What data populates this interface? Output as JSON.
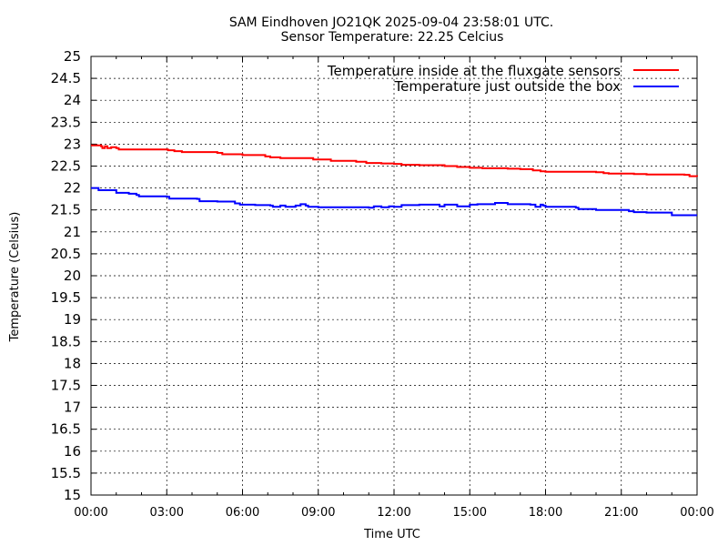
{
  "chart_data": {
    "type": "line",
    "title": "SAM Eindhoven JO21QK 2025-09-04 23:58:01 UTC.",
    "subtitle": "Sensor Temperature: 22.25 Celcius",
    "xlabel": "Time UTC",
    "ylabel": "Temperature (Celsius)",
    "xlim": [
      0,
      24
    ],
    "ylim": [
      15,
      25
    ],
    "xticks": [
      0,
      3,
      6,
      9,
      12,
      15,
      18,
      21,
      24
    ],
    "xtick_labels": [
      "00:00",
      "03:00",
      "06:00",
      "09:00",
      "12:00",
      "15:00",
      "18:00",
      "21:00",
      "00:00"
    ],
    "yticks": [
      15,
      15.5,
      16,
      16.5,
      17,
      17.5,
      18,
      18.5,
      19,
      19.5,
      20,
      20.5,
      21,
      21.5,
      22,
      22.5,
      23,
      23.5,
      24,
      24.5,
      25
    ],
    "ytick_labels": [
      "15",
      "15.5",
      "16",
      "16.5",
      "17",
      "17.5",
      "18",
      "18.5",
      "19",
      "19.5",
      "20",
      "20.5",
      "21",
      "21.5",
      "22",
      "22.5",
      "23",
      "23.5",
      "24",
      "24.5",
      "25"
    ],
    "grid": true,
    "legend_position": "top-right",
    "series": [
      {
        "name": "Temperature inside at the fluxgate sensors",
        "color": "#ff0000",
        "x": [
          0,
          0.4,
          0.45,
          0.55,
          0.65,
          0.8,
          1.0,
          1.1,
          2.0,
          3.0,
          3.05,
          3.3,
          3.6,
          4.5,
          5.0,
          5.2,
          6.0,
          6.5,
          6.9,
          7.1,
          7.5,
          8.5,
          8.8,
          9.5,
          10.5,
          10.9,
          11.5,
          12.0,
          12.3,
          13.0,
          14.0,
          14.5,
          15.0,
          15.5,
          16.5,
          17.0,
          17.5,
          17.8,
          18.0,
          19.0,
          20.0,
          20.3,
          20.5,
          21.0,
          21.5,
          22.0,
          23.0,
          23.5,
          23.7,
          24.0
        ],
        "y": [
          22.97,
          22.95,
          22.91,
          22.95,
          22.91,
          22.93,
          22.91,
          22.88,
          22.88,
          22.88,
          22.86,
          22.84,
          22.82,
          22.82,
          22.8,
          22.77,
          22.75,
          22.75,
          22.72,
          22.7,
          22.68,
          22.68,
          22.65,
          22.62,
          22.6,
          22.57,
          22.56,
          22.55,
          22.53,
          22.52,
          22.5,
          22.48,
          22.46,
          22.45,
          22.44,
          22.43,
          22.4,
          22.38,
          22.37,
          22.37,
          22.36,
          22.34,
          22.33,
          22.33,
          22.32,
          22.31,
          22.31,
          22.3,
          22.27,
          22.26
        ]
      },
      {
        "name": "Temperature just outside the box",
        "color": "#0000ff",
        "x": [
          0,
          0.3,
          0.9,
          1.0,
          1.5,
          1.8,
          1.9,
          3.0,
          3.1,
          4.2,
          4.3,
          5.0,
          5.7,
          5.9,
          6.5,
          7.1,
          7.2,
          7.5,
          7.7,
          8.0,
          8.1,
          8.3,
          8.5,
          8.6,
          9.0,
          10.5,
          11.0,
          11.2,
          11.5,
          11.8,
          12.0,
          12.3,
          13.0,
          13.5,
          13.8,
          14.0,
          14.3,
          14.5,
          15.0,
          15.3,
          15.5,
          16.0,
          16.5,
          17.0,
          17.4,
          17.6,
          17.8,
          17.9,
          18.0,
          18.5,
          19.2,
          19.3,
          20.0,
          21.0,
          21.3,
          21.5,
          22.0,
          22.8,
          23.0,
          24.0
        ],
        "y": [
          22.0,
          21.95,
          21.95,
          21.89,
          21.87,
          21.84,
          21.81,
          21.8,
          21.76,
          21.75,
          21.7,
          21.69,
          21.65,
          21.62,
          21.61,
          21.6,
          21.57,
          21.6,
          21.57,
          21.57,
          21.6,
          21.63,
          21.6,
          21.57,
          21.56,
          21.56,
          21.55,
          21.58,
          21.56,
          21.58,
          21.57,
          21.61,
          21.62,
          21.62,
          21.58,
          21.62,
          21.62,
          21.58,
          21.62,
          21.63,
          21.63,
          21.66,
          21.63,
          21.63,
          21.62,
          21.57,
          21.62,
          21.6,
          21.57,
          21.57,
          21.55,
          21.52,
          21.5,
          21.5,
          21.47,
          21.45,
          21.44,
          21.44,
          21.38,
          21.38
        ]
      }
    ]
  }
}
